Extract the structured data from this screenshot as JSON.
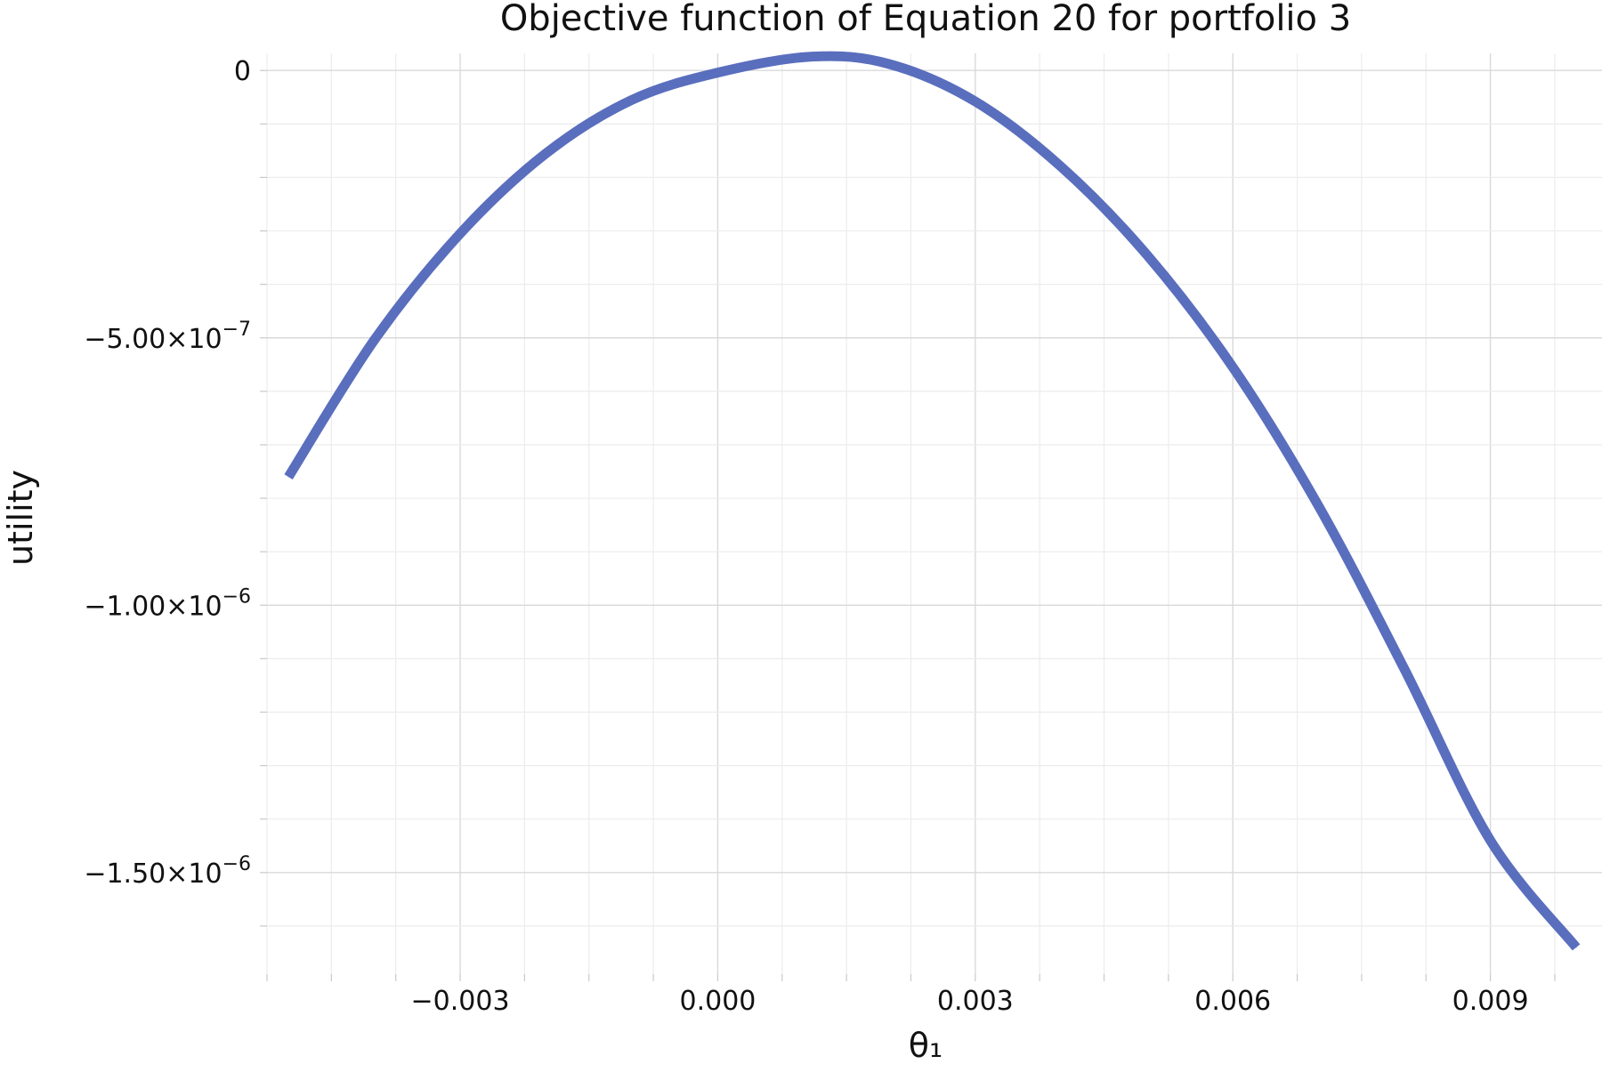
{
  "chart_data": {
    "type": "line",
    "title": "Objective function of Equation 20 for portfolio 3",
    "xlabel": "θ₁",
    "ylabel": "utility",
    "xlim": [
      -0.00525,
      0.0103
    ],
    "ylim": [
      -1.69e-06,
      3.2e-08
    ],
    "x_ticks": [
      -0.003,
      0.0,
      0.003,
      0.006,
      0.009
    ],
    "x_tick_labels": [
      "−0.003",
      "0.000",
      "0.003",
      "0.006",
      "0.009"
    ],
    "y_ticks": [
      0,
      -5e-07,
      -1e-06,
      -1.5e-06
    ],
    "y_tick_labels": [
      {
        "mantissa": "0",
        "exponent": ""
      },
      {
        "mantissa": "−5.00×10",
        "exponent": "−7"
      },
      {
        "mantissa": "−1.00×10",
        "exponent": "−6"
      },
      {
        "mantissa": "−1.50×10",
        "exponent": "−6"
      }
    ],
    "grid": true,
    "series": [
      {
        "color": "#5a6ebe",
        "x": [
          -0.005,
          -0.004,
          -0.003,
          -0.002,
          -0.001,
          0.0,
          0.0011,
          0.002,
          0.003,
          0.004,
          0.005,
          0.006,
          0.007,
          0.008,
          0.009,
          0.01
        ],
        "y": [
          -7.6e-07,
          -5.04e-07,
          -3.05e-07,
          -1.55e-07,
          -5.5e-08,
          -4e-09,
          2.6e-08,
          1.2e-08,
          -5.8e-08,
          -1.8e-07,
          -3.45e-07,
          -5.55e-07,
          -8.15e-07,
          -1.12e-06,
          -1.44e-06,
          -1.64e-06
        ]
      }
    ]
  }
}
